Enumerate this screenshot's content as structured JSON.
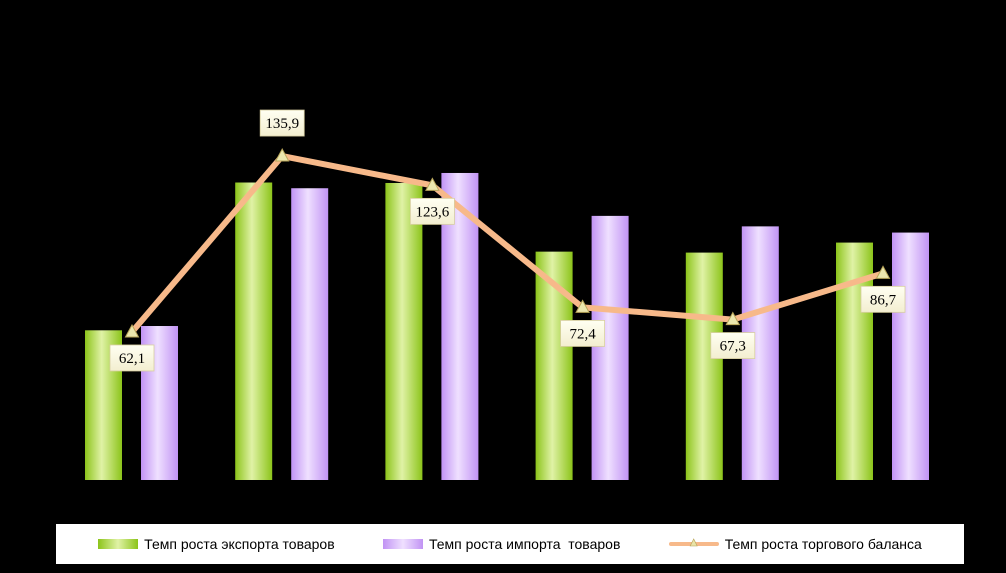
{
  "chart_data": {
    "type": "bar",
    "categories": [
      "",
      "",
      "",
      "",
      "",
      ""
    ],
    "series": [
      {
        "name": "Темп роста экспорта товаров",
        "kind": "bar",
        "color": "#9acd1a",
        "values": [
          62.8,
          124.8,
          124.6,
          95.8,
          95.4,
          99.6
        ]
      },
      {
        "name": "Темп роста импорта  товаров",
        "kind": "bar",
        "color": "#c89cf6",
        "values": [
          64.6,
          122.4,
          128.8,
          110.8,
          106.4,
          103.8
        ]
      },
      {
        "name": "Темп роста торгового баланса",
        "kind": "line",
        "color": "#f7b98a",
        "values": [
          62.1,
          135.9,
          123.6,
          72.4,
          67.3,
          86.7
        ]
      }
    ],
    "data_labels": [
      "62,1",
      "135,9",
      "123,6",
      "72,4",
      "67,3",
      "86,7"
    ],
    "ylim": [
      0,
      172
    ],
    "grid": false,
    "legend_position": "bottom"
  }
}
